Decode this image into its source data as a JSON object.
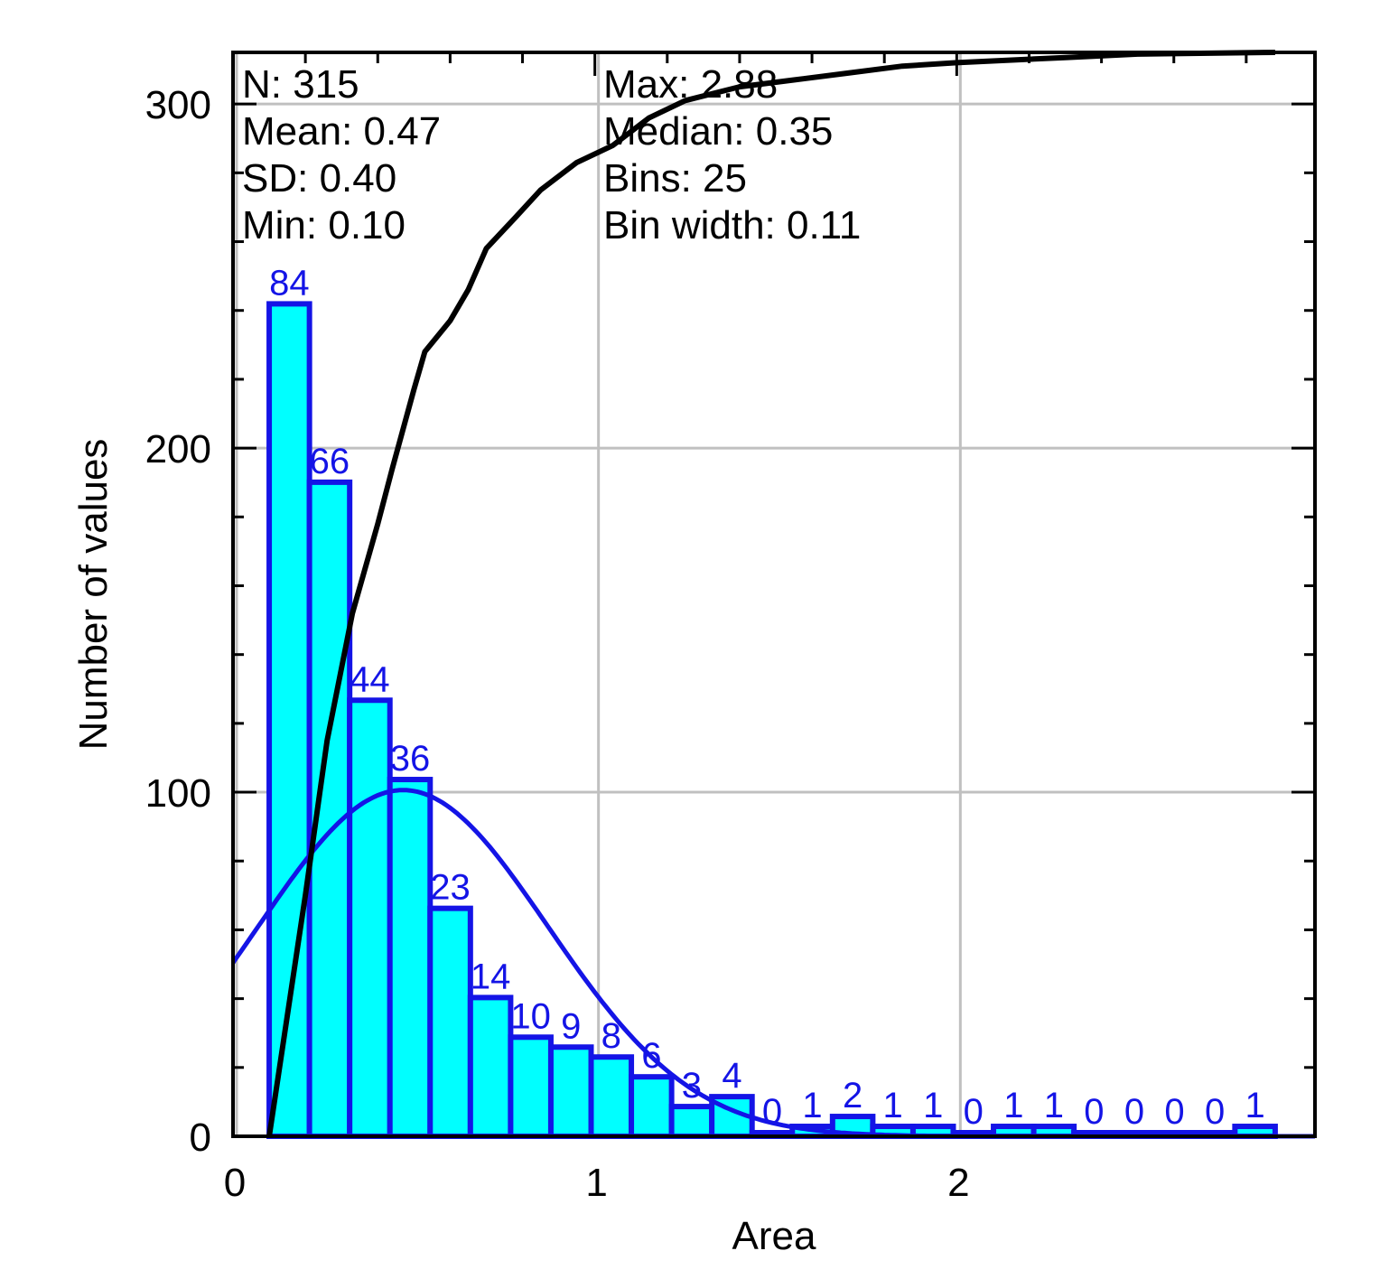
{
  "chart_data": {
    "type": "bar",
    "xlabel": "Area",
    "ylabel": "Number of values",
    "xlim": [
      0,
      3
    ],
    "ylim": [
      0,
      315
    ],
    "x_ticks": [
      "0",
      "1",
      "2"
    ],
    "y_ticks": [
      "0",
      "100",
      "200",
      "300"
    ],
    "grid": true,
    "stats_left": [
      "N: 315",
      "Mean: 0.47",
      "SD: 0.40",
      "Min: 0.10"
    ],
    "stats_right": [
      "Max: 2.88",
      "Median: 0.35",
      "Bins: 25",
      "Bin width: 0.11"
    ],
    "bins": {
      "start": 0.1,
      "end": 2.88,
      "count": 25,
      "counts": [
        84,
        66,
        44,
        36,
        23,
        14,
        10,
        9,
        8,
        6,
        3,
        4,
        0,
        1,
        2,
        1,
        1,
        0,
        1,
        1,
        0,
        0,
        0,
        0,
        1
      ]
    },
    "normal_fit": {
      "mean": 0.47,
      "sd": 0.4
    },
    "cumulative": {
      "x": [
        0.1,
        0.2,
        0.26,
        0.33,
        0.4,
        0.44,
        0.5,
        0.53,
        0.6,
        0.65,
        0.7,
        0.78,
        0.85,
        0.95,
        1.05,
        1.15,
        1.25,
        1.4,
        1.55,
        1.7,
        1.85,
        2.0,
        2.3,
        2.5,
        2.88
      ],
      "y": [
        0,
        70,
        115,
        152,
        178,
        194,
        217,
        228,
        237,
        246,
        258,
        267,
        275,
        283,
        288,
        296,
        301,
        305,
        307,
        309,
        311,
        312,
        313.5,
        314.5,
        315
      ]
    },
    "colors": {
      "bar_fill": "#00ffff",
      "bar_edge": "#1414e6",
      "fit_line": "#1414e6",
      "cumulative_line": "#000000",
      "grid": "#c0c0c0"
    }
  }
}
